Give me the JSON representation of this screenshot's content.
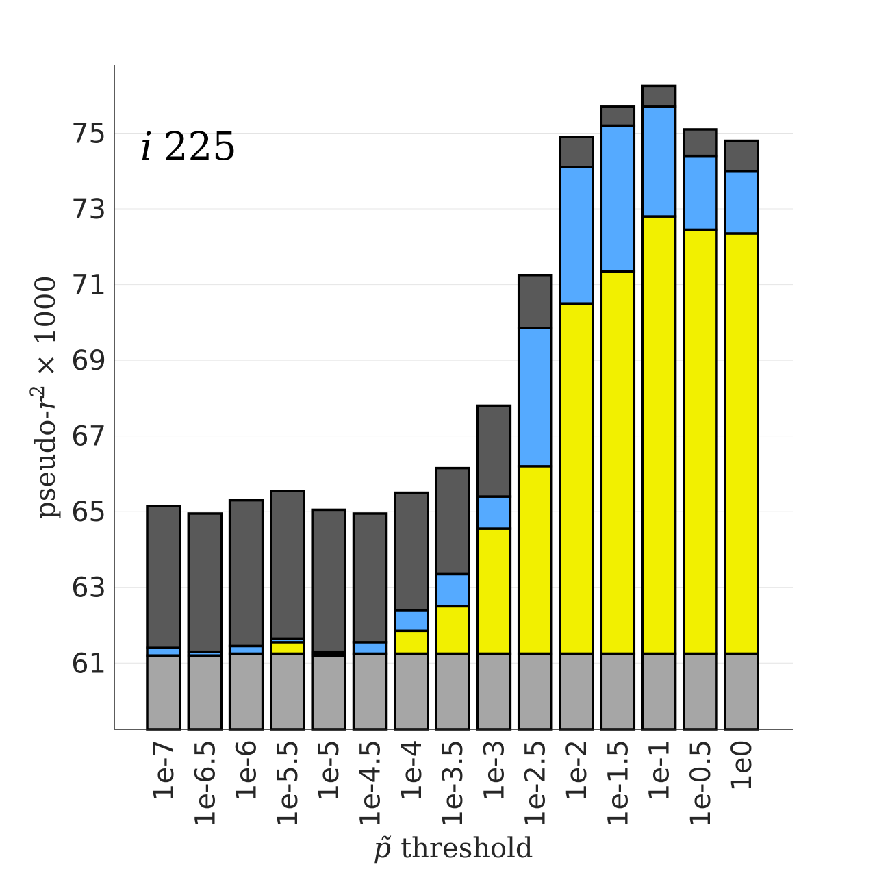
{
  "chart_data": {
    "type": "bar",
    "stacked": true,
    "annotation": {
      "symbol": "i",
      "value": "225"
    },
    "xlabel": {
      "symbol": "p̃",
      "text": "threshold"
    },
    "ylabel": {
      "text": "pseudo-",
      "symbol": "r",
      "superscript": "2",
      "suffix": "× 1000"
    },
    "categories": [
      "1e-7",
      "1e-6.5",
      "1e-6",
      "1e-5.5",
      "1e-5",
      "1e-4.5",
      "1e-4",
      "1e-3.5",
      "1e-3",
      "1e-2.5",
      "1e-2",
      "1e-1.5",
      "1e-1",
      "1e-0.5",
      "1e0"
    ],
    "ylim": [
      59.25,
      76.8
    ],
    "yticks": [
      61,
      63,
      65,
      67,
      69,
      71,
      73,
      75
    ],
    "grid": "y",
    "segment_boundaries": [
      [
        59.25,
        61.2,
        61.2,
        61.4,
        65.15
      ],
      [
        59.25,
        61.2,
        61.2,
        61.3,
        64.95
      ],
      [
        59.25,
        61.25,
        61.25,
        61.45,
        65.3
      ],
      [
        59.25,
        61.25,
        61.55,
        61.65,
        65.55
      ],
      [
        59.25,
        61.2,
        61.25,
        61.3,
        65.05
      ],
      [
        59.25,
        61.25,
        61.25,
        61.55,
        64.95
      ],
      [
        59.25,
        61.25,
        61.85,
        62.4,
        65.5
      ],
      [
        59.25,
        61.25,
        62.5,
        63.35,
        66.15
      ],
      [
        59.25,
        61.25,
        64.55,
        65.4,
        67.8
      ],
      [
        59.25,
        61.25,
        66.2,
        69.85,
        71.25
      ],
      [
        59.25,
        61.25,
        70.5,
        74.1,
        74.9
      ],
      [
        59.25,
        61.25,
        71.35,
        75.2,
        75.7
      ],
      [
        59.25,
        61.25,
        72.8,
        75.7,
        76.25
      ],
      [
        59.25,
        61.25,
        72.45,
        74.4,
        75.1
      ],
      [
        59.25,
        61.25,
        72.35,
        74.0,
        74.8
      ]
    ],
    "segment_colors": [
      "#a6a6a6",
      "#f2f000",
      "#55aaff",
      "#595959"
    ],
    "edge_color": "#000000",
    "grid_color": "#e4e4e4"
  }
}
